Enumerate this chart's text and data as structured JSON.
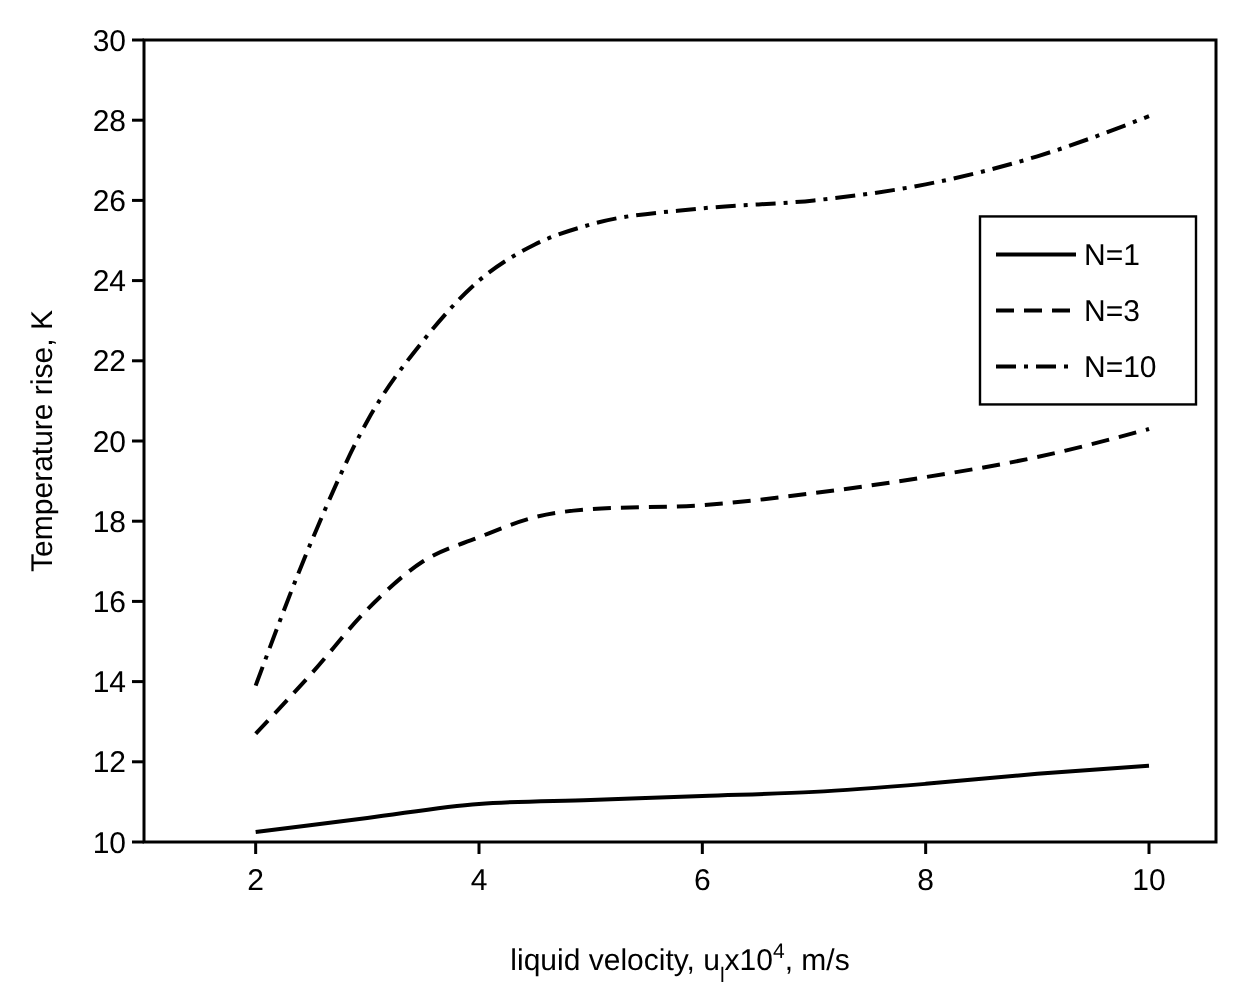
{
  "chart_data": {
    "type": "line",
    "xlabel": "liquid velocity, u$_{l}$x10$^{4}$, m/s",
    "ylabel": "Temperature rise, K",
    "xlim": [
      1,
      10.6
    ],
    "ylim": [
      10,
      30
    ],
    "xticks": [
      2,
      4,
      6,
      8,
      10
    ],
    "yticks": [
      10,
      12,
      14,
      16,
      18,
      20,
      22,
      24,
      26,
      28,
      30
    ],
    "grid": false,
    "legend": "right",
    "series": [
      {
        "name": "N=1",
        "color": "#000000",
        "line_style": "solid",
        "x": [
          2,
          3,
          4,
          5,
          6,
          7,
          8,
          9,
          10
        ],
        "values": [
          10.25,
          10.6,
          10.95,
          11.05,
          11.15,
          11.25,
          11.45,
          11.7,
          11.9
        ]
      },
      {
        "name": "N=3",
        "color": "#000000",
        "line_style": "dashed",
        "x": [
          2,
          2.5,
          3,
          3.5,
          4,
          4.5,
          5,
          6,
          7,
          8,
          9,
          10
        ],
        "values": [
          12.7,
          14.2,
          15.8,
          17,
          17.6,
          18.1,
          18.3,
          18.4,
          18.7,
          19.1,
          19.6,
          20.3
        ]
      },
      {
        "name": "N=10",
        "color": "#000000",
        "line_style": "dashdot",
        "x": [
          2,
          2.5,
          3,
          3.5,
          4,
          4.5,
          5,
          6,
          7,
          8,
          9,
          10
        ],
        "values": [
          13.9,
          17.5,
          20.5,
          22.5,
          24,
          24.9,
          25.4,
          25.8,
          26,
          26.4,
          27.1,
          28.1
        ]
      }
    ]
  }
}
